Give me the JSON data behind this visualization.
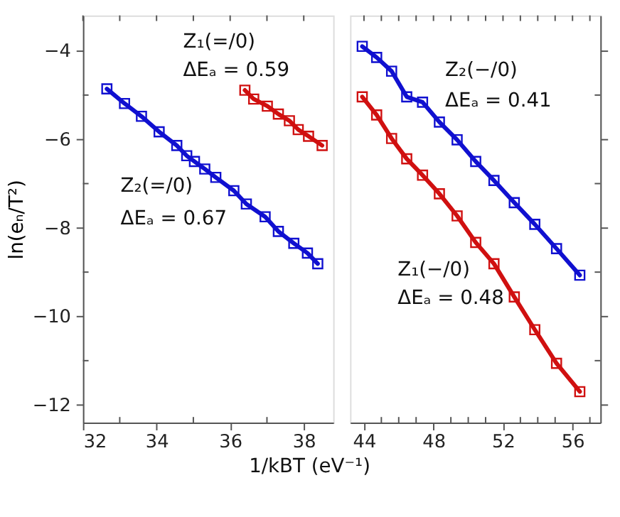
{
  "chart_data": [
    {
      "type": "line",
      "ylabel": "ln(eₙ/T²)",
      "xlabel": "1/kBT (eV⁻¹)",
      "marker": "square",
      "grid": false,
      "xlim": [
        32,
        38.8
      ],
      "xticks": [
        32,
        {
          "value": 33,
          "label": null
        },
        34,
        {
          "value": 35,
          "label": null
        },
        36,
        {
          "value": 37,
          "label": null
        },
        38
      ],
      "ylim": [
        -12.4,
        -3.2
      ],
      "yticks": [
        -4,
        {
          "value": -5,
          "label": null
        },
        -6,
        {
          "value": -7,
          "label": null
        },
        -8,
        {
          "value": -9,
          "label": null
        },
        -10,
        {
          "value": -11,
          "label": null
        },
        -12
      ],
      "series": [
        {
          "color": "#1010d0",
          "x": [
            32.65,
            33.13,
            33.59,
            34.07,
            34.55,
            34.82,
            35.03,
            35.31,
            35.61,
            36.1,
            36.44,
            36.95,
            37.31,
            37.73,
            38.1,
            38.38
          ],
          "values": [
            -4.86,
            -5.19,
            -5.48,
            -5.83,
            -6.14,
            -6.37,
            -6.5,
            -6.67,
            -6.86,
            -7.16,
            -7.46,
            -7.75,
            -8.08,
            -8.35,
            -8.57,
            -8.81
          ]
        },
        {
          "color": "#d01010",
          "x": [
            36.4,
            36.64,
            37.01,
            37.31,
            37.61,
            37.85,
            38.13,
            38.5
          ],
          "values": [
            -4.89,
            -5.09,
            -5.25,
            -5.43,
            -5.58,
            -5.78,
            -5.93,
            -6.14
          ]
        }
      ],
      "annotations": [
        "Z₁(=/0)",
        "ΔEₐ = 0.59",
        "Z₂(=/0)",
        "ΔEₐ = 0.67"
      ],
      "line_style": "solid"
    },
    {
      "type": "line",
      "marker": "square",
      "line_style": "solid",
      "grid": false,
      "tick_labels": "x",
      "xlim": [
        43.2,
        57.6
      ],
      "xticks": [
        44,
        {
          "value": 45,
          "label": null
        },
        {
          "value": 46,
          "label": null
        },
        {
          "value": 47,
          "label": null
        },
        48,
        {
          "value": 49,
          "label": null
        },
        {
          "value": 50,
          "label": null
        },
        {
          "value": 51,
          "label": null
        },
        52,
        {
          "value": 53,
          "label": null
        },
        {
          "value": 54,
          "label": null
        },
        {
          "value": 55,
          "label": null
        },
        56,
        {
          "value": 57,
          "label": null
        }
      ],
      "ylim": [
        -12.4,
        -3.2
      ],
      "yticks": [
        -4,
        {
          "value": -5,
          "label": null
        },
        -6,
        {
          "value": -7,
          "label": null
        },
        -8,
        {
          "value": -9,
          "label": null
        },
        -10,
        {
          "value": -11,
          "label": null
        },
        -12
      ],
      "series": [
        {
          "color": "#1010d0",
          "x": [
            43.9,
            44.73,
            45.59,
            46.46,
            47.37,
            48.34,
            49.36,
            50.43,
            51.48,
            52.65,
            53.83,
            55.08,
            56.42
          ],
          "values": [
            -3.9,
            -4.15,
            -4.46,
            -5.04,
            -5.16,
            -5.61,
            -6.01,
            -6.5,
            -6.93,
            -7.43,
            -7.92,
            -8.47,
            -9.07
          ]
        },
        {
          "color": "#d01010",
          "x": [
            43.9,
            44.73,
            45.59,
            46.46,
            47.37,
            48.34,
            49.36,
            50.43,
            51.48,
            52.65,
            53.83,
            55.08,
            56.42
          ],
          "values": [
            -5.04,
            -5.45,
            -5.98,
            -6.44,
            -6.81,
            -7.23,
            -7.73,
            -8.33,
            -8.81,
            -9.56,
            -10.3,
            -11.06,
            -11.7
          ]
        }
      ],
      "annotations": [
        "Z₂(−/0)",
        "ΔEₐ = 0.41",
        "Z₁(−/0)",
        "ΔEₐ = 0.48"
      ]
    }
  ]
}
